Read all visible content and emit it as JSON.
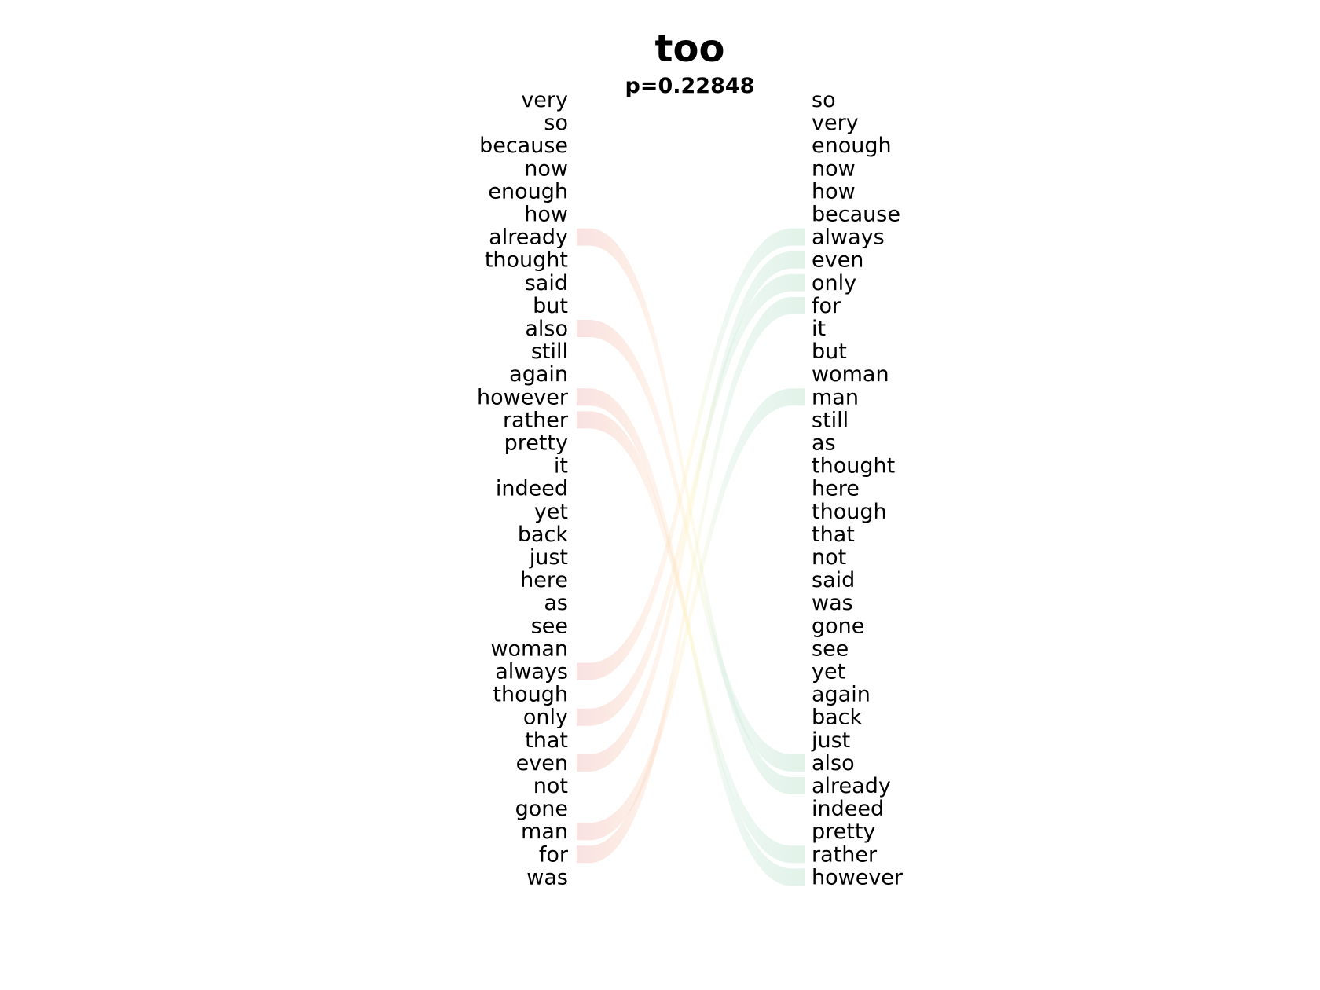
{
  "chart_data": {
    "type": "slope",
    "title": "too",
    "subtitle": "p=0.22848",
    "left_words": [
      "very",
      "so",
      "because",
      "now",
      "enough",
      "how",
      "already",
      "thought",
      "said",
      "but",
      "also",
      "still",
      "again",
      "however",
      "rather",
      "pretty",
      "it",
      "indeed",
      "yet",
      "back",
      "just",
      "here",
      "as",
      "see",
      "woman",
      "always",
      "though",
      "only",
      "that",
      "even",
      "not",
      "gone",
      "man",
      "for",
      "was"
    ],
    "right_words": [
      "so",
      "very",
      "enough",
      "now",
      "how",
      "because",
      "always",
      "even",
      "only",
      "for",
      "it",
      "but",
      "woman",
      "man",
      "still",
      "as",
      "thought",
      "here",
      "though",
      "that",
      "not",
      "said",
      "was",
      "gone",
      "see",
      "yet",
      "again",
      "back",
      "just",
      "also",
      "already",
      "indeed",
      "pretty",
      "rather",
      "however"
    ],
    "links": [
      {
        "from": "already",
        "to": "already"
      },
      {
        "from": "also",
        "to": "also"
      },
      {
        "from": "however",
        "to": "however"
      },
      {
        "from": "rather",
        "to": "rather"
      },
      {
        "from": "always",
        "to": "always"
      },
      {
        "from": "only",
        "to": "only"
      },
      {
        "from": "even",
        "to": "even"
      },
      {
        "from": "man",
        "to": "man"
      },
      {
        "from": "for",
        "to": "for"
      }
    ],
    "colors": {
      "left_accent": "#f4c9c9",
      "right_accent": "#c9e8d7",
      "mid_accent": "#fdf3c4",
      "warm_accent": "#f9c9a8"
    }
  }
}
